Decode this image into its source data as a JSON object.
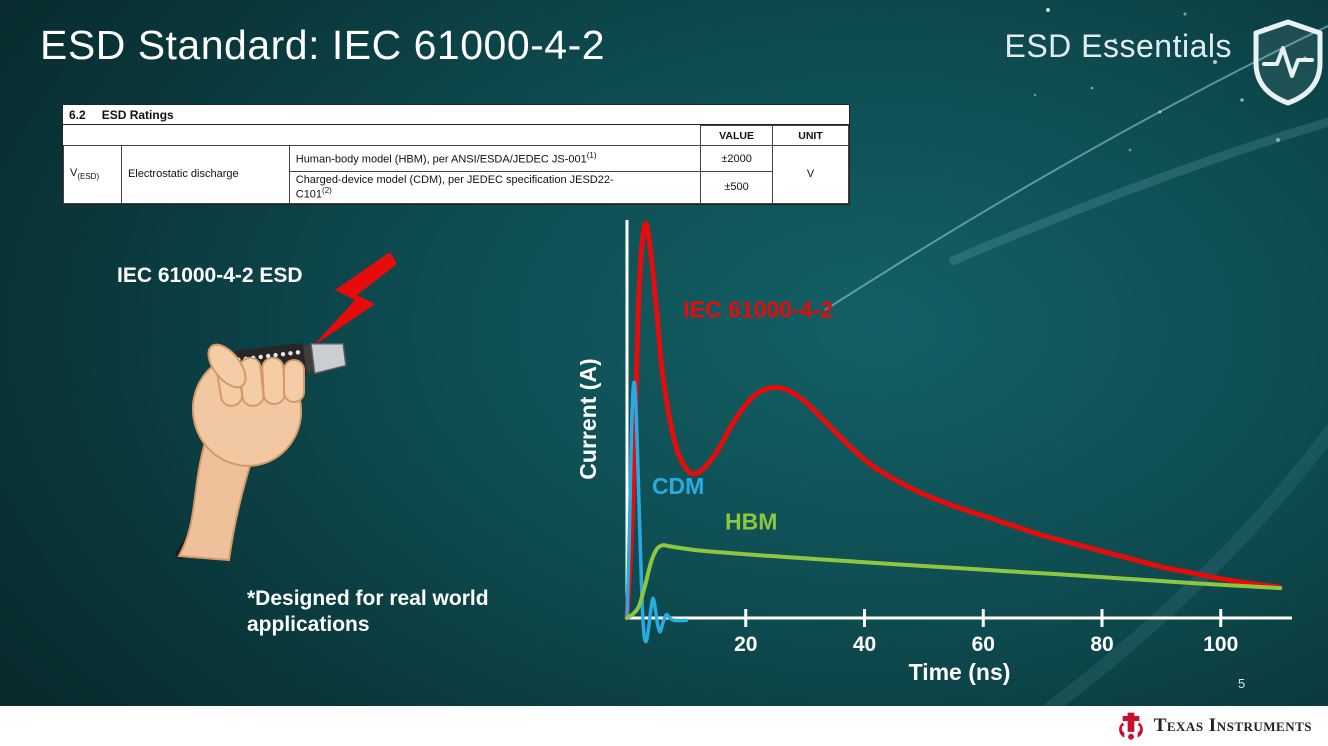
{
  "slide": {
    "title": "ESD Standard: IEC 61000-4-2",
    "brand": "ESD Essentials",
    "page_number": "5",
    "footer_logo_text": "Texas Instruments"
  },
  "ratings_table": {
    "section_number": "6.2",
    "section_title": "ESD Ratings",
    "value_header": "VALUE",
    "unit_header": "UNIT",
    "param_symbol": "V",
    "param_symbol_sub": "(ESD)",
    "param_name": "Electrostatic discharge",
    "rows": [
      {
        "condition": "Human-body model (HBM), per ANSI/ESDA/JEDEC JS-001",
        "condition_sup": "(1)",
        "value": "±2000"
      },
      {
        "condition": "Charged-device model (CDM), per JEDEC specification JESD22-C101",
        "condition_sup": "(2)",
        "value": "±500"
      }
    ],
    "unit": "V"
  },
  "illustration": {
    "label": "IEC 61000-4-2 ESD",
    "caption": "*Designed for real world applications"
  },
  "chart_data": {
    "type": "line",
    "title": "",
    "xlabel": "Time (ns)",
    "ylabel": "Current (A)",
    "xlim": [
      0,
      112
    ],
    "ylim": [
      -0.08,
      1.05
    ],
    "x_ticks": [
      20,
      40,
      60,
      80,
      100
    ],
    "grid": false,
    "y_unit": "normalized (y-axis has no tick labels; values scaled to IEC 61000-4-2 peak = 1.0)",
    "series": [
      {
        "name": "IEC 61000-4-2",
        "color": "#e60c0c",
        "stroke_width": 5,
        "label_pos": [
          9.5,
          0.765
        ],
        "points": [
          [
            0,
            0
          ],
          [
            1,
            0.3
          ],
          [
            2,
            0.82
          ],
          [
            3,
            1.0
          ],
          [
            4,
            0.93
          ],
          [
            5,
            0.78
          ],
          [
            6,
            0.62
          ],
          [
            8,
            0.45
          ],
          [
            10,
            0.38
          ],
          [
            12,
            0.37
          ],
          [
            15,
            0.42
          ],
          [
            18,
            0.5
          ],
          [
            21,
            0.56
          ],
          [
            24,
            0.585
          ],
          [
            27,
            0.58
          ],
          [
            30,
            0.55
          ],
          [
            34,
            0.49
          ],
          [
            38,
            0.43
          ],
          [
            42,
            0.38
          ],
          [
            46,
            0.345
          ],
          [
            50,
            0.315
          ],
          [
            55,
            0.285
          ],
          [
            60,
            0.26
          ],
          [
            65,
            0.235
          ],
          [
            70,
            0.21
          ],
          [
            75,
            0.19
          ],
          [
            80,
            0.17
          ],
          [
            85,
            0.15
          ],
          [
            90,
            0.13
          ],
          [
            95,
            0.115
          ],
          [
            100,
            0.1
          ],
          [
            105,
            0.088
          ],
          [
            110,
            0.078
          ]
        ]
      },
      {
        "name": "CDM",
        "color": "#29abe2",
        "stroke_width": 3.5,
        "label_pos": [
          4.2,
          0.315
        ],
        "points": [
          [
            0,
            0
          ],
          [
            0.4,
            0.22
          ],
          [
            0.8,
            0.5
          ],
          [
            1.2,
            0.6
          ],
          [
            1.6,
            0.5
          ],
          [
            2.0,
            0.3
          ],
          [
            2.4,
            0.1
          ],
          [
            2.8,
            -0.03
          ],
          [
            3.2,
            -0.06
          ],
          [
            3.6,
            -0.03
          ],
          [
            4.0,
            0.02
          ],
          [
            4.4,
            0.05
          ],
          [
            4.8,
            0.02
          ],
          [
            5.2,
            -0.02
          ],
          [
            5.6,
            -0.035
          ],
          [
            6.0,
            -0.015
          ],
          [
            6.6,
            0.008
          ],
          [
            7.2,
            0.0
          ],
          [
            8.0,
            -0.006
          ],
          [
            10.0,
            -0.006
          ]
        ]
      },
      {
        "name": "HBM",
        "color": "#8dc63f",
        "stroke_width": 4,
        "label_pos": [
          16.5,
          0.225
        ],
        "points": [
          [
            0,
            0
          ],
          [
            1,
            0.01
          ],
          [
            2,
            0.03
          ],
          [
            3,
            0.08
          ],
          [
            4,
            0.14
          ],
          [
            5,
            0.175
          ],
          [
            6,
            0.185
          ],
          [
            7,
            0.183
          ],
          [
            9,
            0.178
          ],
          [
            12,
            0.172
          ],
          [
            16,
            0.167
          ],
          [
            20,
            0.162
          ],
          [
            26,
            0.156
          ],
          [
            32,
            0.15
          ],
          [
            40,
            0.142
          ],
          [
            48,
            0.134
          ],
          [
            56,
            0.127
          ],
          [
            64,
            0.119
          ],
          [
            72,
            0.112
          ],
          [
            80,
            0.104
          ],
          [
            88,
            0.096
          ],
          [
            96,
            0.088
          ],
          [
            103,
            0.082
          ],
          [
            110,
            0.076
          ]
        ]
      }
    ]
  }
}
